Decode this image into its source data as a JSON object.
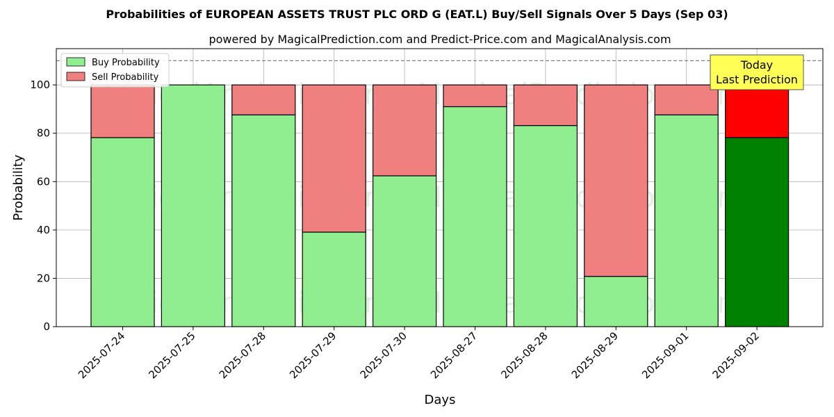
{
  "chart_data": {
    "type": "bar",
    "title": "Probabilities of EUROPEAN ASSETS TRUST PLC ORD G (EAT.L) Buy/Sell Signals Over 5 Days (Sep 03)",
    "subtitle": "powered by MagicalPrediction.com and Predict-Price.com and MagicalAnalysis.com",
    "xlabel": "Days",
    "ylabel": "Probability",
    "ylim": [
      0,
      115
    ],
    "yticks": [
      0,
      20,
      40,
      60,
      80,
      100
    ],
    "reference_line": 110,
    "grid": true,
    "legend_position": "top-left",
    "categories": [
      "2025-07-24",
      "2025-07-25",
      "2025-07-28",
      "2025-07-29",
      "2025-07-30",
      "2025-08-27",
      "2025-08-28",
      "2025-08-29",
      "2025-09-01",
      "2025-09-02"
    ],
    "series": [
      {
        "name": "Buy Probability",
        "values": [
          78.2,
          100,
          87.6,
          39.1,
          62.4,
          91.0,
          83.2,
          20.8,
          87.6,
          78.2
        ]
      },
      {
        "name": "Sell Probability",
        "values": [
          21.8,
          0,
          12.4,
          60.9,
          37.6,
          9.0,
          16.8,
          79.2,
          12.4,
          21.8
        ]
      }
    ],
    "annotation": {
      "lines": [
        "Today",
        "Last Prediction"
      ],
      "category": "2025-09-02"
    },
    "watermarks": [
      "MagicalAnalysis.com",
      "MagicalPrediction.com"
    ]
  },
  "colors": {
    "buy": "#90ee90",
    "sell": "#f08080",
    "buy_highlight": "#008000",
    "sell_highlight": "#ff0000",
    "annotation_bg": "#ffff55",
    "grid": "#b0b0b0"
  }
}
